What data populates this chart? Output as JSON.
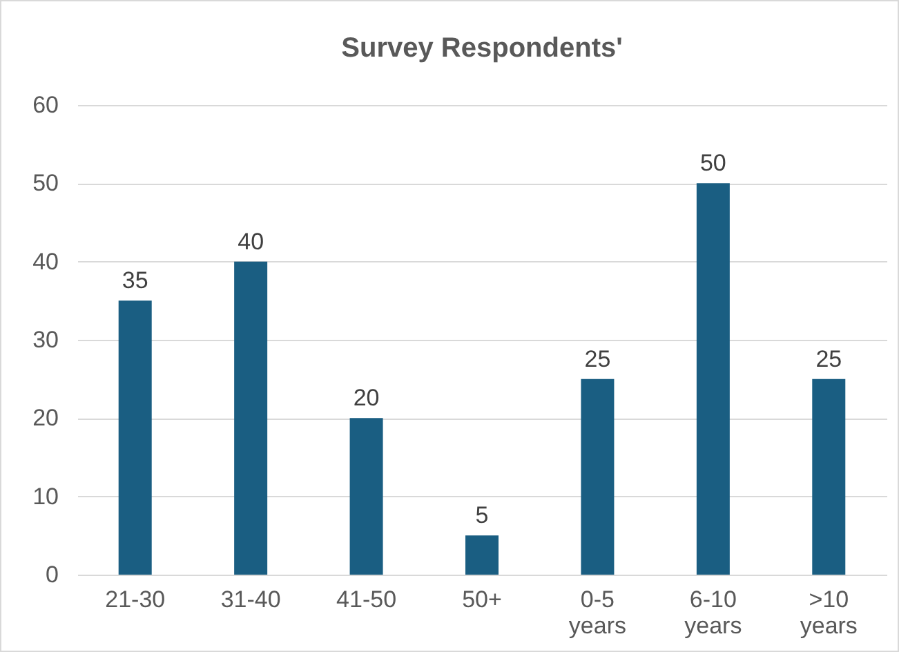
{
  "chart_data": {
    "type": "bar",
    "title": "Survey Respondents'",
    "categories": [
      "21-30",
      "31-40",
      "41-50",
      "50+",
      "0-5 years",
      "6-10 years",
      ">10 years"
    ],
    "values": [
      35,
      40,
      20,
      5,
      25,
      50,
      25
    ],
    "color": "#1a5e82",
    "ylim": [
      0,
      60
    ],
    "yticks": [
      0,
      10,
      20,
      30,
      40,
      50,
      60
    ],
    "grid": "y",
    "data_labels": true
  }
}
